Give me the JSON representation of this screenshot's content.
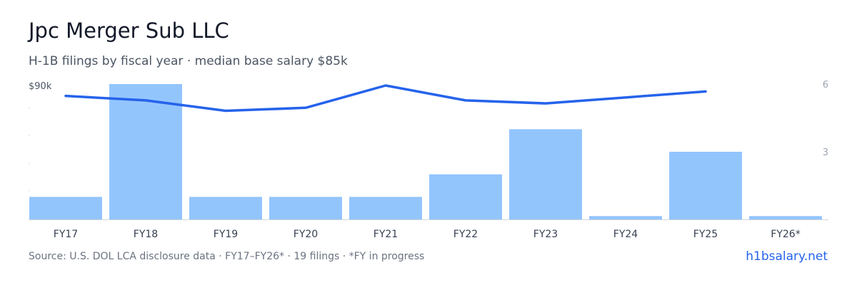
{
  "header": {
    "title": "Jpc Merger Sub LLC",
    "subtitle": "H-1B filings by fiscal year · median base salary $85k"
  },
  "footer": {
    "source": "Source: U.S. DOL LCA disclosure data · FY17–FY26* · 19 filings · *FY in progress",
    "brand": "h1bsalary.net"
  },
  "colors": {
    "bar": "#93c5fd",
    "line": "#2563eb",
    "axis_label": "#6b7280",
    "right_axis_label": "#9ca3af",
    "baseline": "#d1d5db"
  },
  "chart_data": {
    "type": "bar",
    "categories": [
      "FY17",
      "FY18",
      "FY19",
      "FY20",
      "FY21",
      "FY22",
      "FY23",
      "FY24",
      "FY25",
      "FY26*"
    ],
    "series": [
      {
        "type": "bar",
        "axis": "right",
        "values": [
          1,
          6,
          1,
          1,
          1,
          2,
          4,
          0.15,
          3,
          0.15
        ]
      },
      {
        "type": "line",
        "axis": "left",
        "values": [
          83,
          80,
          73,
          75,
          90,
          80,
          78,
          null,
          86,
          null
        ],
        "x_index": [
          0,
          1,
          2,
          3,
          4,
          5,
          6,
          7,
          8,
          9
        ]
      }
    ],
    "left_axis": {
      "label_top": "$90k",
      "max": 90
    },
    "right_axis": {
      "ticks": [
        "6",
        "3"
      ],
      "max": 6
    },
    "grid": false
  }
}
